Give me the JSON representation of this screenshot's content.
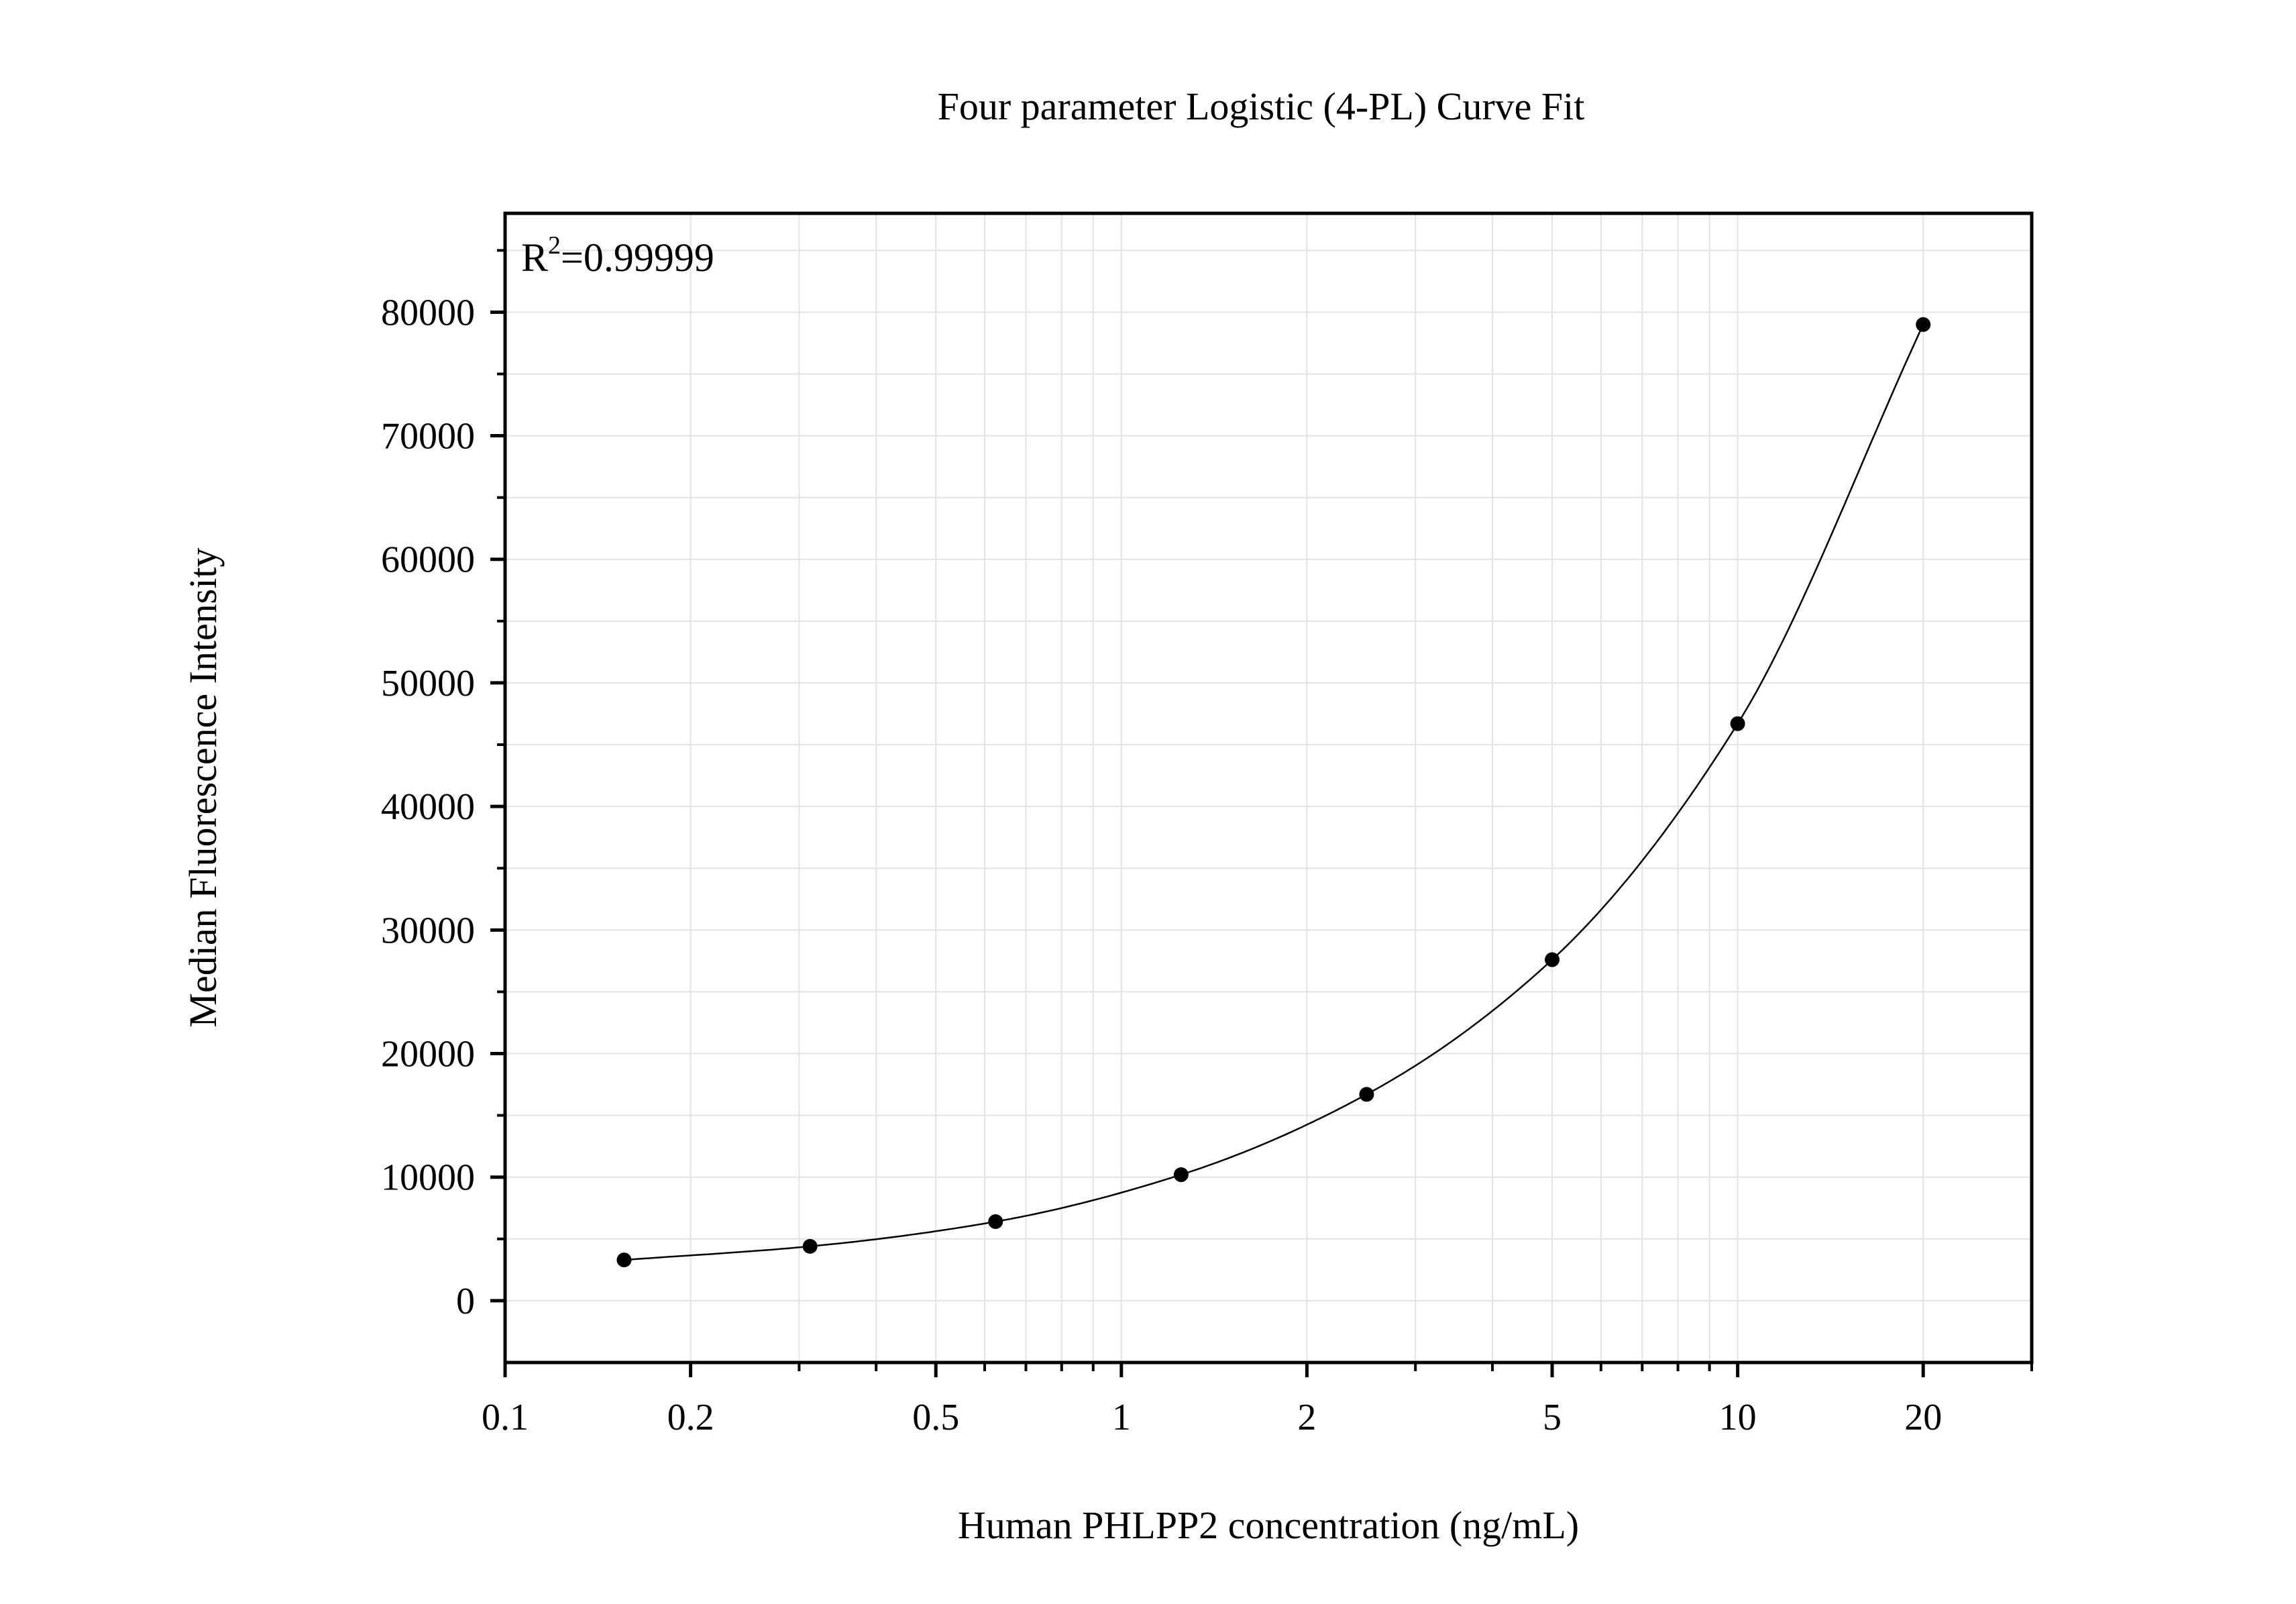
{
  "chart_data": {
    "type": "scatter",
    "title": "Four parameter Logistic (4-PL) Curve Fit",
    "xlabel": "Human PHLPP2 concentration (ng/mL)",
    "ylabel": "Median Fluorescence Intensity",
    "x_scale": "log",
    "xlim": [
      0.1,
      30
    ],
    "ylim": [
      -5000,
      88000
    ],
    "x_ticks": [
      0.1,
      0.2,
      0.5,
      1,
      2,
      5,
      10,
      20
    ],
    "x_tick_labels": [
      "0.1",
      "0.2",
      "0.5",
      "1",
      "2",
      "5",
      "10",
      "20"
    ],
    "y_ticks": [
      0,
      10000,
      20000,
      30000,
      40000,
      50000,
      60000,
      70000,
      80000
    ],
    "y_tick_labels": [
      "0",
      "10000",
      "20000",
      "30000",
      "40000",
      "50000",
      "60000",
      "70000",
      "80000"
    ],
    "grid": true,
    "annotation": {
      "base": "R",
      "sup": "2",
      "rest": "=0.99999"
    },
    "series": [
      {
        "x": [
          0.156,
          0.3125,
          0.625,
          1.25,
          2.5,
          5,
          10,
          20
        ],
        "y": [
          3300,
          4400,
          6400,
          10200,
          16700,
          27600,
          46700,
          79000
        ],
        "marker": "circle",
        "color": "#000000"
      }
    ],
    "fit": {
      "model": "4PL",
      "color": "#000000"
    }
  }
}
